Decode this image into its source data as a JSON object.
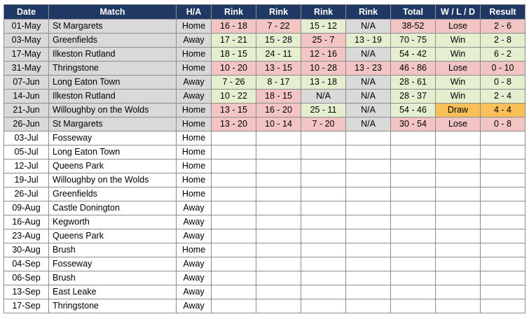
{
  "headers": [
    "Date",
    "Match",
    "H/A",
    "Rink",
    "Rink",
    "Rink",
    "Rink",
    "Total",
    "W / L / D",
    "Result"
  ],
  "colors": {
    "header_bg": "#1f3864",
    "red": "#f2c4c4",
    "green": "#e5efd0",
    "gray": "#d9d9d9",
    "orange": "#f9c05a"
  },
  "played": [
    {
      "date": "01-May",
      "match": "St Margarets",
      "ha": "Home",
      "rinks": [
        {
          "v": "16 - 18",
          "c": "red"
        },
        {
          "v": "7 - 22",
          "c": "red"
        },
        {
          "v": "15 - 12",
          "c": "green"
        },
        {
          "v": "N/A",
          "c": "gray"
        }
      ],
      "total": {
        "v": "38-52",
        "c": "red"
      },
      "wld": {
        "v": "Lose",
        "c": "red"
      },
      "result": {
        "v": "2 - 6",
        "c": "red"
      }
    },
    {
      "date": "03-May",
      "match": "Greenfields",
      "ha": "Away",
      "rinks": [
        {
          "v": "17 - 21",
          "c": "green"
        },
        {
          "v": "15 - 28",
          "c": "green"
        },
        {
          "v": "25 - 7",
          "c": "red"
        },
        {
          "v": "13 - 19",
          "c": "green"
        }
      ],
      "total": {
        "v": "70 - 75",
        "c": "green"
      },
      "wld": {
        "v": "Win",
        "c": "green"
      },
      "result": {
        "v": "2 - 8",
        "c": "green"
      }
    },
    {
      "date": "17-May",
      "match": "Ilkeston Rutland",
      "ha": "Home",
      "rinks": [
        {
          "v": "18 - 15",
          "c": "green"
        },
        {
          "v": "24 - 11",
          "c": "green"
        },
        {
          "v": "12 - 16",
          "c": "red"
        },
        {
          "v": "N/A",
          "c": "gray"
        }
      ],
      "total": {
        "v": "54 - 42",
        "c": "green"
      },
      "wld": {
        "v": "Win",
        "c": "green"
      },
      "result": {
        "v": "6 - 2",
        "c": "green"
      }
    },
    {
      "date": "31-May",
      "match": "Thringstone",
      "ha": "Home",
      "rinks": [
        {
          "v": "10 - 20",
          "c": "red"
        },
        {
          "v": "13 - 15",
          "c": "red"
        },
        {
          "v": "10 - 28",
          "c": "red"
        },
        {
          "v": "13 - 23",
          "c": "red"
        }
      ],
      "total": {
        "v": "46 - 86",
        "c": "red"
      },
      "wld": {
        "v": "Lose",
        "c": "red"
      },
      "result": {
        "v": "0 - 10",
        "c": "red"
      }
    },
    {
      "date": "07-Jun",
      "match": "Long Eaton Town",
      "ha": "Away",
      "rinks": [
        {
          "v": "7 - 26",
          "c": "green"
        },
        {
          "v": "8 - 17",
          "c": "green"
        },
        {
          "v": "13 - 18",
          "c": "green"
        },
        {
          "v": "N/A",
          "c": "gray"
        }
      ],
      "total": {
        "v": "28 - 61",
        "c": "green"
      },
      "wld": {
        "v": "Win",
        "c": "green"
      },
      "result": {
        "v": "0 - 8",
        "c": "green"
      }
    },
    {
      "date": "14-Jun",
      "match": "Ilkeston Rutland",
      "ha": "Away",
      "rinks": [
        {
          "v": "10 - 22",
          "c": "green"
        },
        {
          "v": "18 - 15",
          "c": "red"
        },
        {
          "v": "N/A",
          "c": "gray"
        },
        {
          "v": "N/A",
          "c": "gray"
        }
      ],
      "total": {
        "v": "28 - 37",
        "c": "green"
      },
      "wld": {
        "v": "Win",
        "c": "green"
      },
      "result": {
        "v": "2 - 4",
        "c": "green"
      }
    },
    {
      "date": "21-Jun",
      "match": "Willoughby on the Wolds",
      "ha": "Home",
      "rinks": [
        {
          "v": "13 - 15",
          "c": "red"
        },
        {
          "v": "16 - 20",
          "c": "red"
        },
        {
          "v": "25 - 11",
          "c": "green"
        },
        {
          "v": "N/A",
          "c": "gray"
        }
      ],
      "total": {
        "v": "54 - 46",
        "c": "green"
      },
      "wld": {
        "v": "Draw",
        "c": "orange"
      },
      "result": {
        "v": "4 - 4",
        "c": "orange"
      }
    },
    {
      "date": "26-Jun",
      "match": "St Margarets",
      "ha": "Home",
      "rinks": [
        {
          "v": "13 - 20",
          "c": "red"
        },
        {
          "v": "10 - 14",
          "c": "red"
        },
        {
          "v": "7 - 20",
          "c": "red"
        },
        {
          "v": "N/A",
          "c": "gray"
        }
      ],
      "total": {
        "v": "30 - 54",
        "c": "red"
      },
      "wld": {
        "v": "Lose",
        "c": "red"
      },
      "result": {
        "v": "0 - 8",
        "c": "red"
      }
    }
  ],
  "upcoming": [
    {
      "date": "03-Jul",
      "match": "Fosseway",
      "ha": "Home"
    },
    {
      "date": "05-Jul",
      "match": "Long Eaton Town",
      "ha": "Home"
    },
    {
      "date": "12-Jul",
      "match": "Queens Park",
      "ha": "Home"
    },
    {
      "date": "19-Jul",
      "match": "Willoughby on the Wolds",
      "ha": "Home"
    },
    {
      "date": "26-Jul",
      "match": "Greenfields",
      "ha": "Home"
    },
    {
      "date": "09-Aug",
      "match": "Castle Donington",
      "ha": "Away"
    },
    {
      "date": "16-Aug",
      "match": "Kegworth",
      "ha": "Away"
    },
    {
      "date": "23-Aug",
      "match": "Queens Park",
      "ha": "Away"
    },
    {
      "date": "30-Aug",
      "match": "Brush",
      "ha": "Home"
    },
    {
      "date": "04-Sep",
      "match": "Fosseway",
      "ha": "Away"
    },
    {
      "date": "06-Sep",
      "match": "Brush",
      "ha": "Away"
    },
    {
      "date": "13-Sep",
      "match": "East Leake",
      "ha": "Away"
    },
    {
      "date": "17-Sep",
      "match": "Thringstone",
      "ha": "Away"
    }
  ]
}
